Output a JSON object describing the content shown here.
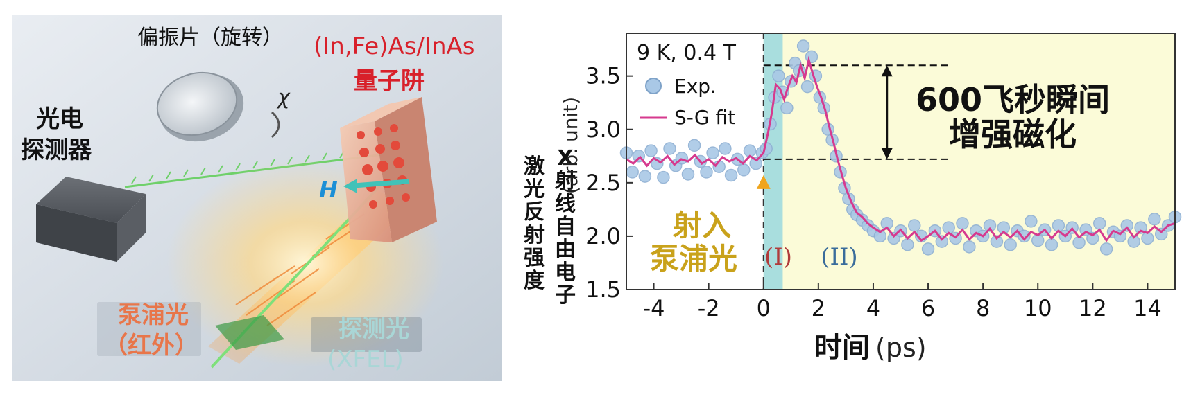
{
  "left_panel": {
    "polarizer_label": "偏振片（旋转）",
    "chi_symbol": "χ",
    "sample_label_line1": "(In,Fe)As/InAs",
    "sample_label_line2": "量子阱",
    "detector_label_line1": "光电",
    "detector_label_line2": "探测器",
    "field_symbol": "H",
    "pump_label_line1": "泵浦光",
    "pump_label_line2": "（红外）",
    "probe_label_line1": "探测光",
    "probe_label_line2": "(XFEL)",
    "colors": {
      "sample_text": "#d8202a",
      "pump_text": "#e8764a",
      "probe_text": "#a9d6d6",
      "field_text": "#1b8fd6"
    }
  },
  "chart_data": {
    "type": "scatter",
    "title": "",
    "xlabel": "时间",
    "xlabel_unit": "(ps)",
    "ylabel_a": "X射线自由电子",
    "ylabel_b": "激光反射强度",
    "ylabel_unit": "(arb. unit)",
    "xlim": [
      -5,
      15
    ],
    "ylim": [
      1.5,
      3.9
    ],
    "x_ticks": [
      "-4",
      "-2",
      "0",
      "2",
      "4",
      "6",
      "8",
      "10",
      "12",
      "14"
    ],
    "y_ticks": [
      "1.5",
      "2.0",
      "2.5",
      "3.0",
      "3.5"
    ],
    "condition_label": "9 K, 0.4 T",
    "legend": {
      "exp_label": "Exp.",
      "fit_label": "S-G fit",
      "placement": "top-left"
    },
    "annotation_main_line1": "600飞秒瞬间",
    "annotation_main_line2": "增强磁化",
    "annotation_pump_line1": "射入",
    "annotation_pump_line2": "泵浦光",
    "region_I": "(I)",
    "region_II": "(II)",
    "levels": {
      "high": 3.6,
      "baseline": 2.72
    },
    "region_I_range": [
      0,
      0.7
    ],
    "colors": {
      "exp": "#a9c8e6",
      "exp_stroke": "#8fb0d3",
      "fit": "#d63a8e",
      "region_I": "#a9dede",
      "region_II": "#fbfbd8",
      "pump_text": "#c9a21b",
      "region_I_text": "#b13b3b",
      "region_II_text": "#3a6c9b"
    },
    "series": [
      {
        "name": "Exp.",
        "style": "scatter",
        "x": [
          -5.0,
          -4.78,
          -4.55,
          -4.32,
          -4.1,
          -3.88,
          -3.65,
          -3.42,
          -3.2,
          -2.98,
          -2.75,
          -2.52,
          -2.3,
          -2.08,
          -1.85,
          -1.62,
          -1.4,
          -1.18,
          -0.95,
          -0.72,
          -0.5,
          -0.28,
          -0.05,
          0.1,
          0.25,
          0.4,
          0.55,
          0.7,
          0.85,
          1.0,
          1.15,
          1.3,
          1.45,
          1.6,
          1.75,
          1.9,
          2.05,
          2.2,
          2.35,
          2.5,
          2.65,
          2.8,
          2.95,
          3.1,
          3.25,
          3.4,
          3.6,
          3.8,
          4.0,
          4.25,
          4.5,
          4.75,
          5.0,
          5.25,
          5.5,
          5.75,
          6.0,
          6.25,
          6.5,
          6.75,
          7.0,
          7.25,
          7.5,
          7.75,
          8.0,
          8.25,
          8.5,
          8.75,
          9.0,
          9.25,
          9.5,
          9.75,
          10.0,
          10.25,
          10.5,
          10.75,
          11.0,
          11.25,
          11.5,
          11.75,
          12.0,
          12.25,
          12.5,
          12.75,
          13.0,
          13.25,
          13.5,
          13.75,
          14.0,
          14.25,
          14.5,
          14.75,
          15.0
        ],
        "y": [
          2.78,
          2.6,
          2.75,
          2.56,
          2.8,
          2.68,
          2.55,
          2.82,
          2.66,
          2.73,
          2.58,
          2.85,
          2.7,
          2.6,
          2.78,
          2.65,
          2.82,
          2.57,
          2.72,
          2.62,
          2.8,
          2.68,
          2.78,
          2.82,
          3.05,
          3.3,
          3.5,
          3.35,
          3.2,
          3.45,
          3.62,
          3.55,
          3.78,
          3.4,
          3.68,
          3.5,
          3.3,
          3.2,
          3.0,
          2.9,
          2.75,
          2.6,
          2.45,
          2.35,
          2.25,
          2.2,
          2.15,
          2.1,
          2.05,
          2.0,
          2.12,
          1.98,
          2.05,
          1.92,
          2.1,
          2.0,
          1.88,
          2.05,
          1.95,
          2.08,
          1.98,
          2.12,
          1.9,
          2.05,
          2.0,
          2.1,
          1.95,
          2.08,
          1.92,
          2.05,
          2.0,
          2.14,
          1.96,
          2.06,
          1.92,
          2.1,
          2.0,
          2.08,
          1.94,
          2.06,
          1.98,
          2.12,
          1.88,
          2.04,
          2.0,
          2.1,
          1.95,
          2.08,
          1.98,
          2.16,
          2.02,
          2.1,
          2.18
        ]
      },
      {
        "name": "S-G fit",
        "style": "line",
        "x": [
          -5.0,
          -4.75,
          -4.5,
          -4.25,
          -4.0,
          -3.75,
          -3.5,
          -3.25,
          -3.0,
          -2.75,
          -2.5,
          -2.25,
          -2.0,
          -1.75,
          -1.5,
          -1.25,
          -1.0,
          -0.75,
          -0.5,
          -0.25,
          0.0,
          0.15,
          0.3,
          0.45,
          0.6,
          0.75,
          0.9,
          1.05,
          1.2,
          1.35,
          1.5,
          1.65,
          1.8,
          1.95,
          2.1,
          2.25,
          2.4,
          2.55,
          2.7,
          2.85,
          3.0,
          3.2,
          3.4,
          3.6,
          3.8,
          4.0,
          4.25,
          4.5,
          4.75,
          5.0,
          5.25,
          5.5,
          5.75,
          6.0,
          6.25,
          6.5,
          6.75,
          7.0,
          7.25,
          7.5,
          7.75,
          8.0,
          8.25,
          8.5,
          8.75,
          9.0,
          9.25,
          9.5,
          9.75,
          10.0,
          10.25,
          10.5,
          10.75,
          11.0,
          11.25,
          11.5,
          11.75,
          12.0,
          12.25,
          12.5,
          12.75,
          13.0,
          13.25,
          13.5,
          13.75,
          14.0,
          14.25,
          14.5,
          14.75,
          15.0
        ],
        "y": [
          2.72,
          2.68,
          2.74,
          2.66,
          2.73,
          2.69,
          2.75,
          2.67,
          2.72,
          2.7,
          2.76,
          2.68,
          2.72,
          2.66,
          2.74,
          2.7,
          2.73,
          2.68,
          2.75,
          2.71,
          2.78,
          2.95,
          3.15,
          3.42,
          3.38,
          3.28,
          3.4,
          3.5,
          3.44,
          3.6,
          3.48,
          3.65,
          3.52,
          3.4,
          3.3,
          3.18,
          3.02,
          2.88,
          2.72,
          2.58,
          2.45,
          2.32,
          2.22,
          2.18,
          2.12,
          2.08,
          2.04,
          2.08,
          2.0,
          2.06,
          1.98,
          2.04,
          1.96,
          2.0,
          2.05,
          1.97,
          2.03,
          1.99,
          2.06,
          1.97,
          2.03,
          2.0,
          2.07,
          1.98,
          2.04,
          1.99,
          2.05,
          1.97,
          2.04,
          2.01,
          2.06,
          1.98,
          2.05,
          2.0,
          2.07,
          1.99,
          2.04,
          2.01,
          2.06,
          1.96,
          2.05,
          2.02,
          2.08,
          1.99,
          2.05,
          2.03,
          2.09,
          2.04,
          2.1,
          2.12
        ]
      }
    ]
  }
}
